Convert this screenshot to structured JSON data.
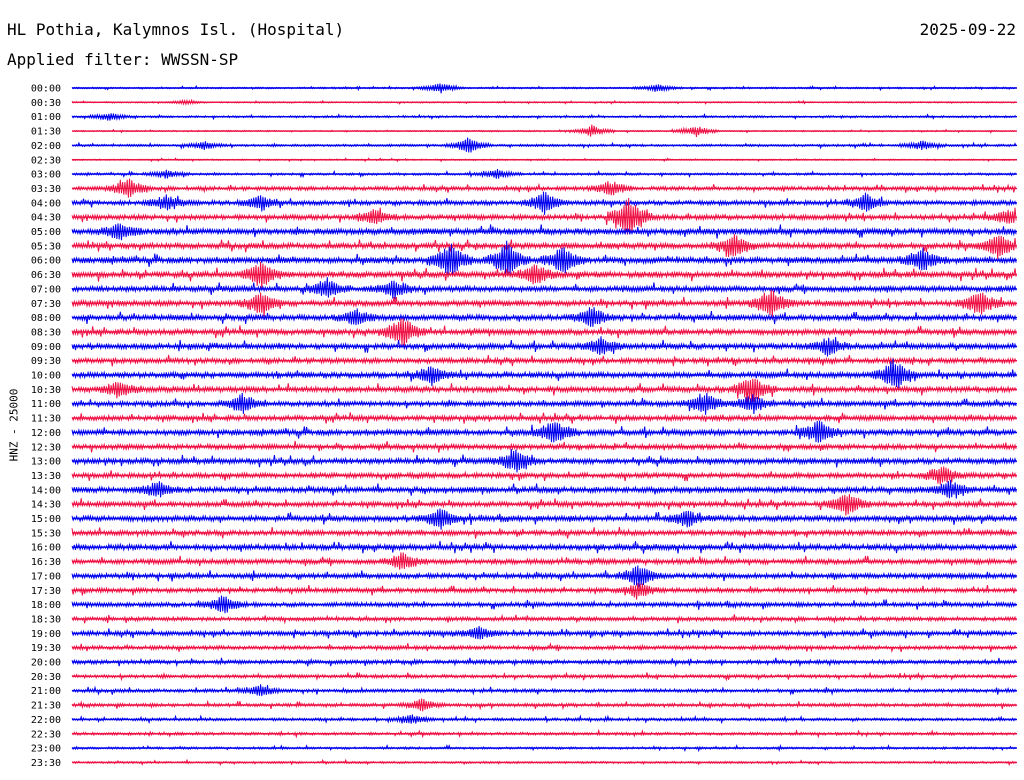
{
  "header": {
    "station": "HL Pothia, Kalymnos Isl. (Hospital)",
    "date": "2025-09-22",
    "filter": "Applied filter: WWSSN-SP"
  },
  "chart_data": {
    "type": "line",
    "subtype": "helicorder",
    "channel_label": "HNZ - 25000",
    "rows": [
      "00:00",
      "00:30",
      "01:00",
      "01:30",
      "02:00",
      "02:30",
      "03:00",
      "03:30",
      "04:00",
      "04:30",
      "05:00",
      "05:30",
      "06:00",
      "06:30",
      "07:00",
      "07:30",
      "08:00",
      "08:30",
      "09:00",
      "09:30",
      "10:00",
      "10:30",
      "11:00",
      "11:30",
      "12:00",
      "12:30",
      "13:00",
      "13:30",
      "14:00",
      "14:30",
      "15:00",
      "15:30",
      "16:00",
      "16:30",
      "17:00",
      "17:30",
      "18:00",
      "18:30",
      "19:00",
      "19:30",
      "20:00",
      "20:30",
      "21:00",
      "21:30",
      "22:00",
      "22:30",
      "23:00",
      "23:30"
    ],
    "colors": [
      "#0000ee",
      "#ee1144"
    ],
    "activity": [
      0.15,
      0.12,
      0.18,
      0.12,
      0.2,
      0.12,
      0.2,
      0.35,
      0.4,
      0.45,
      0.55,
      0.5,
      0.55,
      0.55,
      0.5,
      0.5,
      0.5,
      0.5,
      0.5,
      0.45,
      0.5,
      0.5,
      0.45,
      0.45,
      0.5,
      0.45,
      0.5,
      0.45,
      0.5,
      0.45,
      0.5,
      0.45,
      0.5,
      0.45,
      0.45,
      0.4,
      0.4,
      0.35,
      0.4,
      0.35,
      0.35,
      0.3,
      0.3,
      0.3,
      0.25,
      0.25,
      0.2,
      0.18
    ],
    "events": [
      {
        "row": 0,
        "t": 0.39,
        "amp": 0.5
      },
      {
        "row": 0,
        "t": 0.62,
        "amp": 0.4
      },
      {
        "row": 1,
        "t": 0.12,
        "amp": 0.2
      },
      {
        "row": 2,
        "t": 0.04,
        "amp": 0.4
      },
      {
        "row": 3,
        "t": 0.55,
        "amp": 0.6
      },
      {
        "row": 3,
        "t": 0.66,
        "amp": 0.6
      },
      {
        "row": 4,
        "t": 0.14,
        "amp": 0.4
      },
      {
        "row": 4,
        "t": 0.42,
        "amp": 0.8
      },
      {
        "row": 4,
        "t": 0.9,
        "amp": 0.5
      },
      {
        "row": 6,
        "t": 0.1,
        "amp": 0.4
      },
      {
        "row": 6,
        "t": 0.45,
        "amp": 0.5
      },
      {
        "row": 7,
        "t": 0.06,
        "amp": 1.1
      },
      {
        "row": 7,
        "t": 0.57,
        "amp": 0.8
      },
      {
        "row": 8,
        "t": 0.1,
        "amp": 0.8
      },
      {
        "row": 8,
        "t": 0.2,
        "amp": 0.8
      },
      {
        "row": 8,
        "t": 0.5,
        "amp": 1.2
      },
      {
        "row": 8,
        "t": 0.84,
        "amp": 0.9
      },
      {
        "row": 9,
        "t": 0.32,
        "amp": 0.8
      },
      {
        "row": 9,
        "t": 0.59,
        "amp": 2.2
      },
      {
        "row": 9,
        "t": 0.99,
        "amp": 0.8
      },
      {
        "row": 10,
        "t": 0.05,
        "amp": 0.9
      },
      {
        "row": 11,
        "t": 0.7,
        "amp": 1.2
      },
      {
        "row": 11,
        "t": 0.98,
        "amp": 1.3
      },
      {
        "row": 12,
        "t": 0.4,
        "amp": 1.8
      },
      {
        "row": 12,
        "t": 0.46,
        "amp": 1.8
      },
      {
        "row": 12,
        "t": 0.52,
        "amp": 1.5
      },
      {
        "row": 12,
        "t": 0.9,
        "amp": 1.2
      },
      {
        "row": 13,
        "t": 0.2,
        "amp": 1.3
      },
      {
        "row": 13,
        "t": 0.49,
        "amp": 1.0
      },
      {
        "row": 14,
        "t": 0.27,
        "amp": 1.0
      },
      {
        "row": 14,
        "t": 0.34,
        "amp": 1.0
      },
      {
        "row": 15,
        "t": 0.2,
        "amp": 1.2
      },
      {
        "row": 15,
        "t": 0.96,
        "amp": 1.3
      },
      {
        "row": 15,
        "t": 0.74,
        "amp": 1.5
      },
      {
        "row": 16,
        "t": 0.3,
        "amp": 0.8
      },
      {
        "row": 16,
        "t": 0.55,
        "amp": 1.0
      },
      {
        "row": 17,
        "t": 0.35,
        "amp": 1.6
      },
      {
        "row": 18,
        "t": 0.56,
        "amp": 0.9
      },
      {
        "row": 18,
        "t": 0.8,
        "amp": 0.9
      },
      {
        "row": 20,
        "t": 0.38,
        "amp": 1.0
      },
      {
        "row": 20,
        "t": 0.87,
        "amp": 1.6
      },
      {
        "row": 21,
        "t": 0.05,
        "amp": 0.9
      },
      {
        "row": 21,
        "t": 0.72,
        "amp": 1.4
      },
      {
        "row": 22,
        "t": 0.18,
        "amp": 1.0
      },
      {
        "row": 22,
        "t": 0.67,
        "amp": 1.1
      },
      {
        "row": 22,
        "t": 0.72,
        "amp": 0.9
      },
      {
        "row": 24,
        "t": 0.51,
        "amp": 1.3
      },
      {
        "row": 24,
        "t": 0.79,
        "amp": 1.2
      },
      {
        "row": 26,
        "t": 0.47,
        "amp": 1.2
      },
      {
        "row": 27,
        "t": 0.92,
        "amp": 1.0
      },
      {
        "row": 28,
        "t": 0.09,
        "amp": 0.8
      },
      {
        "row": 28,
        "t": 0.93,
        "amp": 0.9
      },
      {
        "row": 29,
        "t": 0.82,
        "amp": 1.2
      },
      {
        "row": 30,
        "t": 0.39,
        "amp": 1.0
      },
      {
        "row": 30,
        "t": 0.65,
        "amp": 0.8
      },
      {
        "row": 33,
        "t": 0.35,
        "amp": 0.9
      },
      {
        "row": 34,
        "t": 0.6,
        "amp": 1.3
      },
      {
        "row": 35,
        "t": 0.6,
        "amp": 0.8
      },
      {
        "row": 36,
        "t": 0.16,
        "amp": 0.9
      },
      {
        "row": 38,
        "t": 0.43,
        "amp": 0.7
      },
      {
        "row": 42,
        "t": 0.2,
        "amp": 0.6
      },
      {
        "row": 43,
        "t": 0.37,
        "amp": 0.6
      },
      {
        "row": 44,
        "t": 0.36,
        "amp": 0.5
      }
    ]
  }
}
